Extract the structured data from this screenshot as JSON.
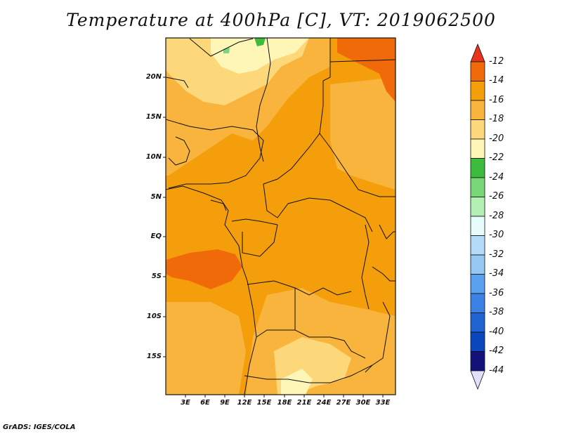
{
  "title": "Temperature at 400hPa [C], VT: 2019062500",
  "footer": "GrADS: IGES/COLA",
  "map": {
    "y_labels": [
      "20N",
      "15N",
      "10N",
      "5N",
      "EQ",
      "5S",
      "10S",
      "15S"
    ],
    "x_labels": [
      "3E",
      "6E",
      "9E",
      "12E",
      "15E",
      "18E",
      "21E",
      "24E",
      "27E",
      "30E",
      "33E"
    ]
  },
  "colorbar": {
    "labels": [
      "-12",
      "-14",
      "-16",
      "-18",
      "-20",
      "-22",
      "-24",
      "-26",
      "-28",
      "-30",
      "-32",
      "-34",
      "-36",
      "-38",
      "-40",
      "-42",
      "-44"
    ],
    "colors": [
      "#e8341c",
      "#f06a0a",
      "#f59e0b",
      "#f8b43c",
      "#fcd87a",
      "#fef6b6",
      "#3cbc3c",
      "#78d878",
      "#b4f0b4",
      "#e8fcfc",
      "#b4dcf8",
      "#96c8f4",
      "#5aa0f0",
      "#3c82e6",
      "#1e64d2",
      "#0a46be",
      "#12127a",
      "#e0e0fa"
    ]
  }
}
